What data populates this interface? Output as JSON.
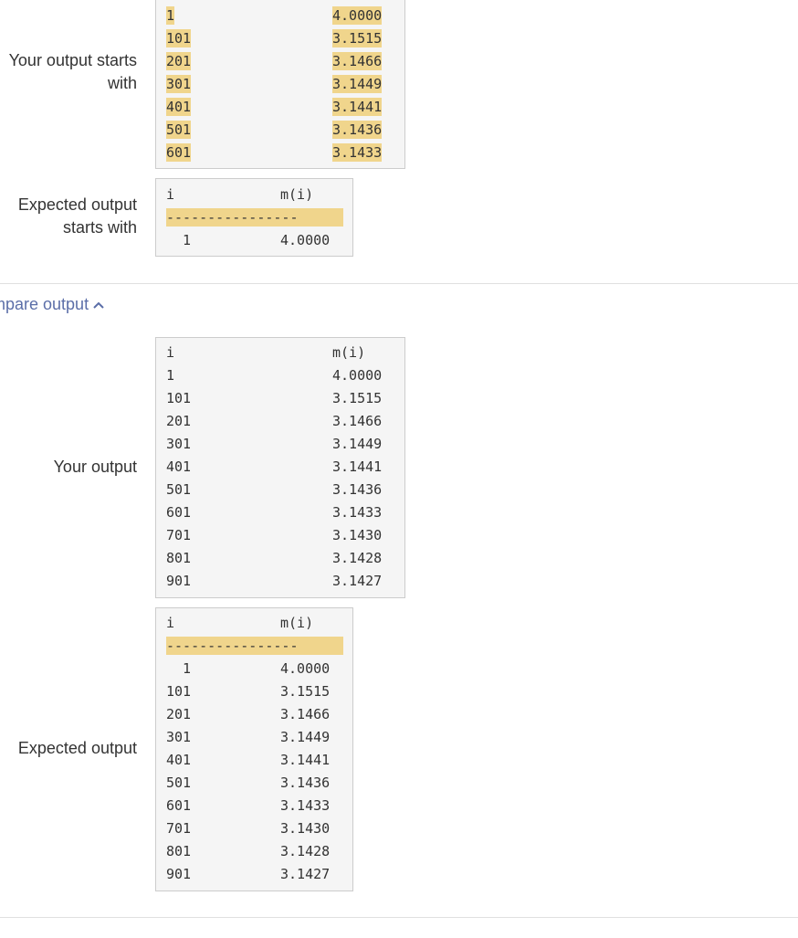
{
  "labels": {
    "your_output_starts_with": "Your output starts with",
    "expected_output_starts_with": "Expected output starts with",
    "your_output": "Your output",
    "expected_output": "Expected output"
  },
  "compare_toggle": "mpare output",
  "header": {
    "i": "i",
    "m": "m(i)"
  },
  "dash_line": "----------------",
  "starts_with_rows": [
    {
      "i": "1",
      "m": "4.0000"
    },
    {
      "i": "101",
      "m": "3.1515"
    },
    {
      "i": "201",
      "m": "3.1466"
    },
    {
      "i": "301",
      "m": "3.1449"
    },
    {
      "i": "401",
      "m": "3.1441"
    },
    {
      "i": "501",
      "m": "3.1436"
    },
    {
      "i": "601",
      "m": "3.1433"
    }
  ],
  "expected_starts_rows": [
    {
      "i": "  1",
      "m": "4.0000"
    }
  ],
  "full_rows": [
    {
      "i": "1",
      "m": "4.0000"
    },
    {
      "i": "101",
      "m": "3.1515"
    },
    {
      "i": "201",
      "m": "3.1466"
    },
    {
      "i": "301",
      "m": "3.1449"
    },
    {
      "i": "401",
      "m": "3.1441"
    },
    {
      "i": "501",
      "m": "3.1436"
    },
    {
      "i": "601",
      "m": "3.1433"
    },
    {
      "i": "701",
      "m": "3.1430"
    },
    {
      "i": "801",
      "m": "3.1428"
    },
    {
      "i": "901",
      "m": "3.1427"
    }
  ],
  "expected_full_rows": [
    {
      "i": "  1",
      "m": "4.0000"
    },
    {
      "i": "101",
      "m": "3.1515"
    },
    {
      "i": "201",
      "m": "3.1466"
    },
    {
      "i": "301",
      "m": "3.1449"
    },
    {
      "i": "401",
      "m": "3.1441"
    },
    {
      "i": "501",
      "m": "3.1436"
    },
    {
      "i": "601",
      "m": "3.1433"
    },
    {
      "i": "701",
      "m": "3.1430"
    },
    {
      "i": "801",
      "m": "3.1428"
    },
    {
      "i": "901",
      "m": "3.1427"
    }
  ],
  "colors": {
    "highlight": "#f0d58c",
    "link": "#5b6ea8",
    "box_bg": "#f5f5f5"
  }
}
